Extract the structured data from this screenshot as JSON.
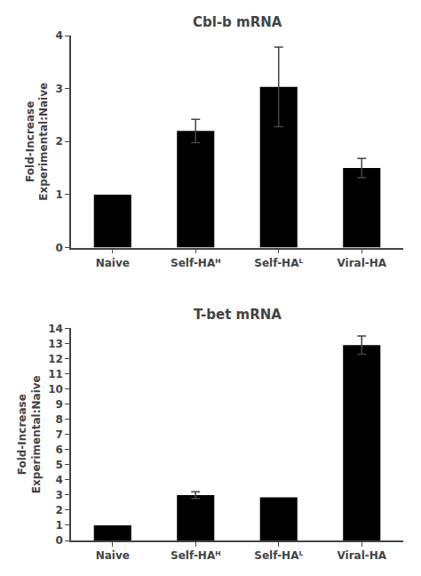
{
  "chart_data": [
    {
      "type": "bar",
      "title": "Cbl-b mRNA",
      "categories": [
        "Naive",
        "Self-HAᴴ",
        "Self-HAᴸ",
        "Viral-HA"
      ],
      "values": [
        1.0,
        2.2,
        3.03,
        1.5
      ],
      "errors": [
        0.0,
        0.22,
        0.75,
        0.18
      ],
      "ylim": [
        0,
        4
      ],
      "yticks": [
        0,
        1,
        2,
        3,
        4
      ],
      "ylabel": "Fold-Increase\nExperimental:Naive",
      "color": "#000000",
      "grid": false
    },
    {
      "type": "bar",
      "title": "T-bet mRNA",
      "categories": [
        "Naive",
        "Self-HAᴴ",
        "Self-HAᴸ",
        "Viral-HA"
      ],
      "values": [
        1.0,
        3.0,
        2.85,
        12.9
      ],
      "errors": [
        0.0,
        0.22,
        0.0,
        0.6
      ],
      "ylim": [
        0,
        14
      ],
      "yticks": [
        0,
        1,
        2,
        3,
        4,
        5,
        6,
        7,
        8,
        9,
        10,
        11,
        12,
        13,
        14
      ],
      "ylabel": "Fold-Increase\nExperimental:Naive",
      "color": "#000000",
      "grid": false
    }
  ]
}
